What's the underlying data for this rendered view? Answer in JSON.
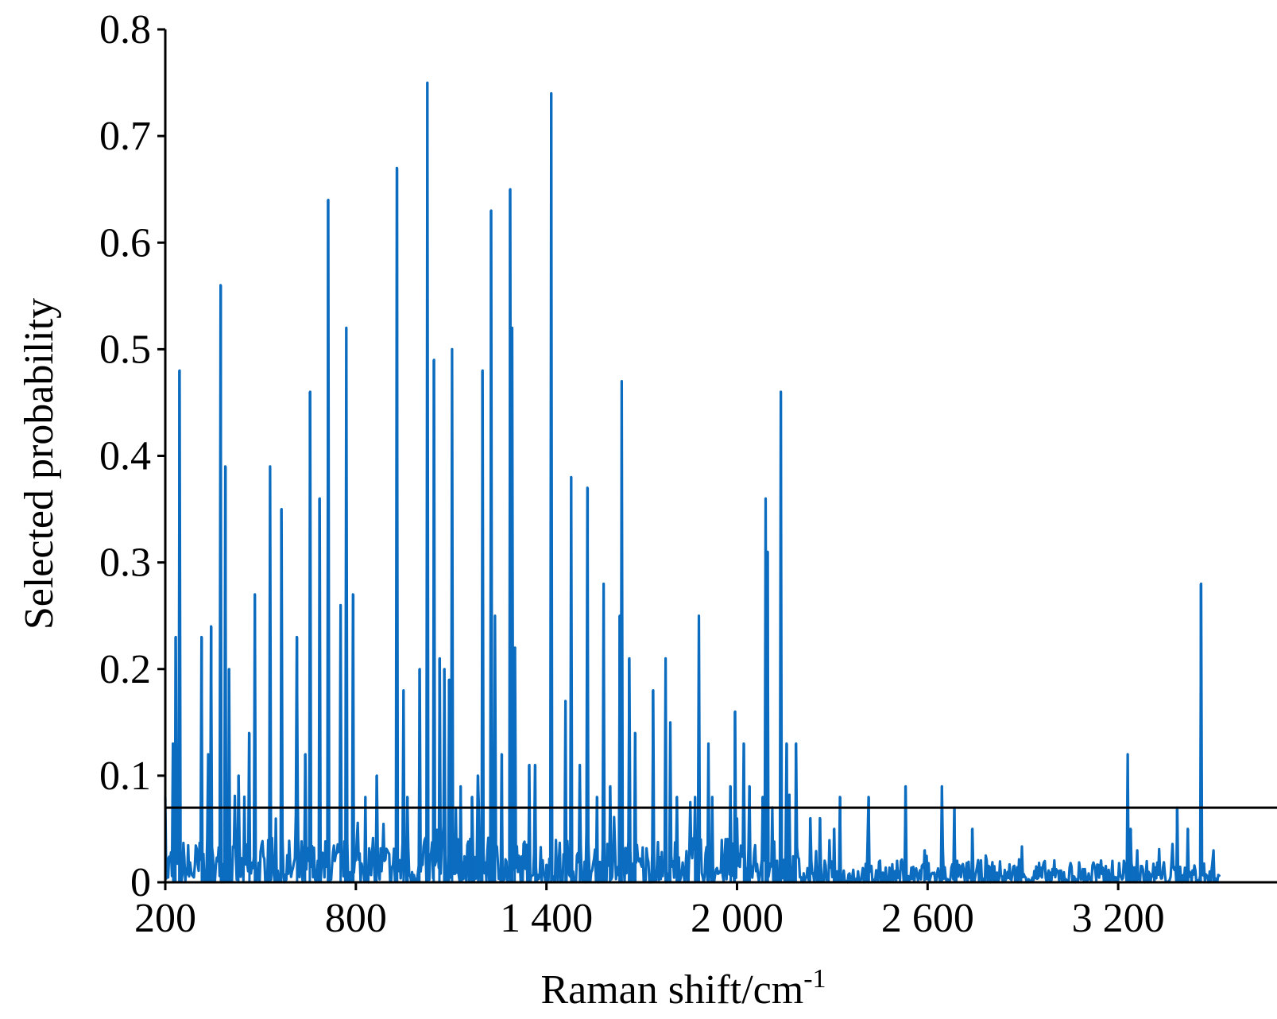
{
  "chart_data": {
    "type": "line",
    "title": "",
    "xlabel": "Raman shift/cm",
    "xlabel_sup": "-1",
    "ylabel": "Selected probability",
    "xlim": [
      200,
      3700
    ],
    "ylim": [
      0,
      0.8
    ],
    "x_ticks": [
      200,
      800,
      1400,
      2000,
      2600,
      3200
    ],
    "x_tick_labels": [
      "200",
      "800",
      "1 400",
      "2 000",
      "2 600",
      "3 200"
    ],
    "y_ticks": [
      0,
      0.1,
      0.2,
      0.3,
      0.4,
      0.5,
      0.6,
      0.7,
      0.8
    ],
    "y_tick_labels": [
      "0",
      "0.1",
      "0.2",
      "0.3",
      "0.4",
      "0.5",
      "0.6",
      "0.7",
      "0.8"
    ],
    "threshold": 0.07,
    "grid": false,
    "legend": "none",
    "colors": {
      "series": "#0B6CC0",
      "axis": "#000000",
      "threshold": "#000000"
    },
    "x_range": [
      200,
      3520
    ],
    "baseline_range": [
      0.0,
      0.03
    ],
    "peaks": [
      {
        "x": 200,
        "y": 0.08
      },
      {
        "x": 225,
        "y": 0.13
      },
      {
        "x": 232,
        "y": 0.23
      },
      {
        "x": 244,
        "y": 0.48
      },
      {
        "x": 315,
        "y": 0.23
      },
      {
        "x": 335,
        "y": 0.12
      },
      {
        "x": 345,
        "y": 0.24
      },
      {
        "x": 375,
        "y": 0.56
      },
      {
        "x": 390,
        "y": 0.39
      },
      {
        "x": 400,
        "y": 0.2
      },
      {
        "x": 430,
        "y": 0.1
      },
      {
        "x": 465,
        "y": 0.14
      },
      {
        "x": 482,
        "y": 0.27
      },
      {
        "x": 530,
        "y": 0.39
      },
      {
        "x": 565,
        "y": 0.35
      },
      {
        "x": 615,
        "y": 0.23
      },
      {
        "x": 640,
        "y": 0.12
      },
      {
        "x": 655,
        "y": 0.46
      },
      {
        "x": 685,
        "y": 0.36
      },
      {
        "x": 712,
        "y": 0.64
      },
      {
        "x": 752,
        "y": 0.26
      },
      {
        "x": 770,
        "y": 0.52
      },
      {
        "x": 792,
        "y": 0.27
      },
      {
        "x": 830,
        "y": 0.08
      },
      {
        "x": 865,
        "y": 0.1
      },
      {
        "x": 930,
        "y": 0.67
      },
      {
        "x": 950,
        "y": 0.18
      },
      {
        "x": 963,
        "y": 0.08
      },
      {
        "x": 1000,
        "y": 0.2
      },
      {
        "x": 1025,
        "y": 0.75
      },
      {
        "x": 1045,
        "y": 0.49
      },
      {
        "x": 1063,
        "y": 0.21
      },
      {
        "x": 1078,
        "y": 0.2
      },
      {
        "x": 1093,
        "y": 0.19
      },
      {
        "x": 1103,
        "y": 0.5
      },
      {
        "x": 1130,
        "y": 0.09
      },
      {
        "x": 1165,
        "y": 0.08
      },
      {
        "x": 1185,
        "y": 0.1
      },
      {
        "x": 1198,
        "y": 0.48
      },
      {
        "x": 1225,
        "y": 0.63
      },
      {
        "x": 1238,
        "y": 0.25
      },
      {
        "x": 1260,
        "y": 0.12
      },
      {
        "x": 1285,
        "y": 0.65
      },
      {
        "x": 1292,
        "y": 0.52
      },
      {
        "x": 1300,
        "y": 0.22
      },
      {
        "x": 1345,
        "y": 0.11
      },
      {
        "x": 1365,
        "y": 0.11
      },
      {
        "x": 1415,
        "y": 0.74
      },
      {
        "x": 1460,
        "y": 0.17
      },
      {
        "x": 1478,
        "y": 0.38
      },
      {
        "x": 1505,
        "y": 0.11
      },
      {
        "x": 1530,
        "y": 0.37
      },
      {
        "x": 1560,
        "y": 0.08
      },
      {
        "x": 1580,
        "y": 0.28
      },
      {
        "x": 1600,
        "y": 0.09
      },
      {
        "x": 1630,
        "y": 0.25
      },
      {
        "x": 1637,
        "y": 0.47
      },
      {
        "x": 1660,
        "y": 0.21
      },
      {
        "x": 1680,
        "y": 0.14
      },
      {
        "x": 1735,
        "y": 0.18
      },
      {
        "x": 1775,
        "y": 0.21
      },
      {
        "x": 1790,
        "y": 0.15
      },
      {
        "x": 1810,
        "y": 0.08
      },
      {
        "x": 1868,
        "y": 0.08
      },
      {
        "x": 1880,
        "y": 0.25
      },
      {
        "x": 1910,
        "y": 0.13
      },
      {
        "x": 1922,
        "y": 0.08
      },
      {
        "x": 1980,
        "y": 0.09
      },
      {
        "x": 1993,
        "y": 0.16
      },
      {
        "x": 2022,
        "y": 0.13
      },
      {
        "x": 2040,
        "y": 0.09
      },
      {
        "x": 2080,
        "y": 0.08
      },
      {
        "x": 2090,
        "y": 0.36
      },
      {
        "x": 2097,
        "y": 0.31
      },
      {
        "x": 2138,
        "y": 0.46
      },
      {
        "x": 2157,
        "y": 0.13
      },
      {
        "x": 2185,
        "y": 0.13
      },
      {
        "x": 2230,
        "y": 0.06
      },
      {
        "x": 2262,
        "y": 0.06
      },
      {
        "x": 2305,
        "y": 0.05
      },
      {
        "x": 2325,
        "y": 0.08
      },
      {
        "x": 2415,
        "y": 0.08
      },
      {
        "x": 2530,
        "y": 0.09
      },
      {
        "x": 2590,
        "y": 0.03
      },
      {
        "x": 2645,
        "y": 0.09
      },
      {
        "x": 2685,
        "y": 0.07
      },
      {
        "x": 2740,
        "y": 0.05
      },
      {
        "x": 3230,
        "y": 0.12
      },
      {
        "x": 3240,
        "y": 0.05
      },
      {
        "x": 3260,
        "y": 0.03
      },
      {
        "x": 3385,
        "y": 0.07
      },
      {
        "x": 3420,
        "y": 0.05
      },
      {
        "x": 3460,
        "y": 0.28
      },
      {
        "x": 3500,
        "y": 0.03
      }
    ]
  }
}
